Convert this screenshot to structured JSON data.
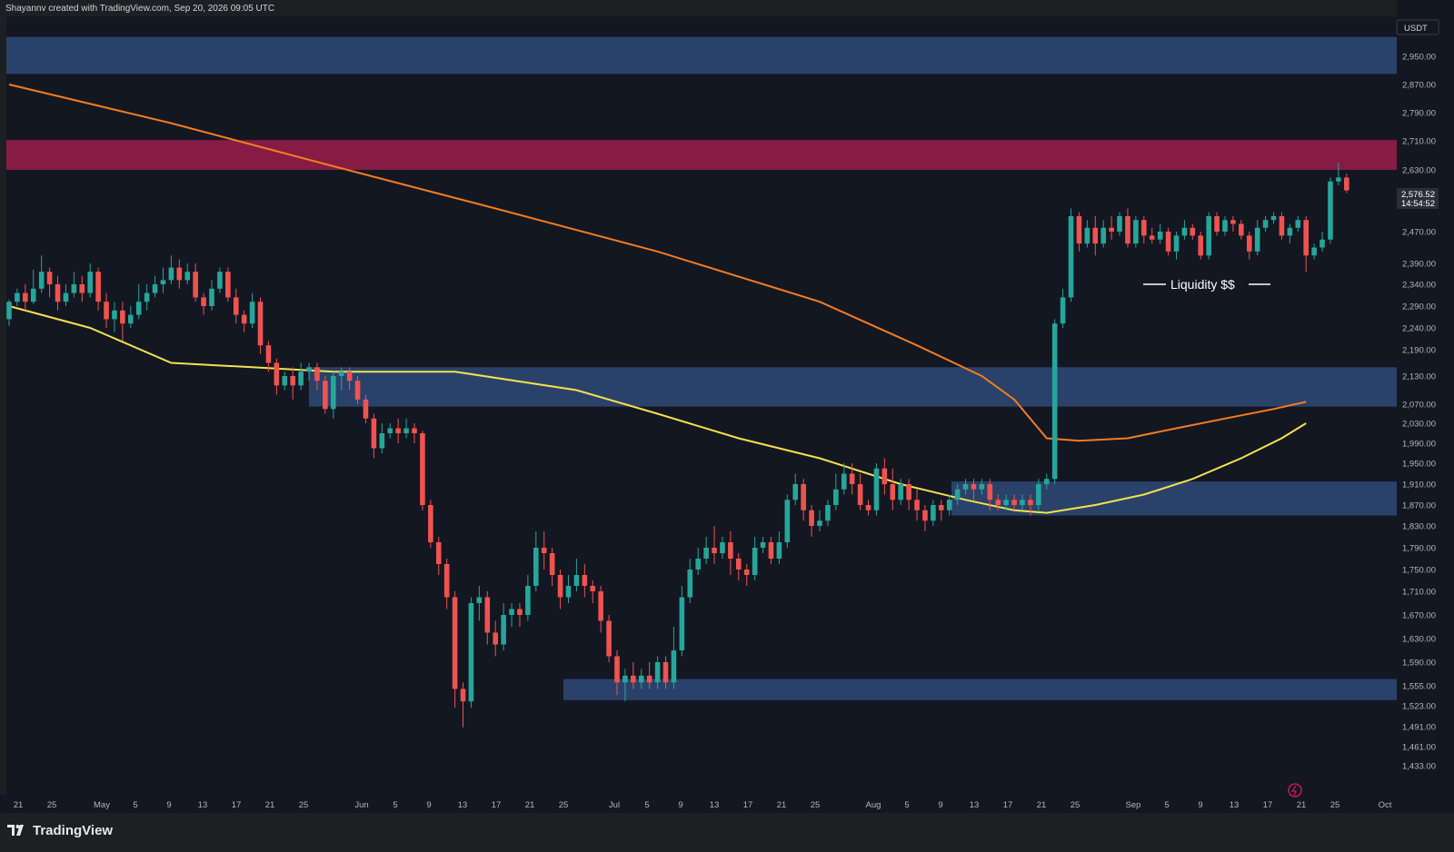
{
  "header": {
    "attribution": "Shayannv created with TradingView.com, Sep 20, 2026 09:05 UTC"
  },
  "footer": {
    "brand": "TradingView"
  },
  "colors": {
    "background": "#131722",
    "up": "#26a69a",
    "down": "#ef5350",
    "zone": "#2f4a77",
    "supply": "#8c1c47",
    "ma_orange": "#f57c1f",
    "ma_yellow": "#f5e14c"
  },
  "chart_data": {
    "type": "candlestick",
    "currency": "USDT",
    "current_price": "2,576.52",
    "countdown": "14:54:52",
    "y_ticks": [
      "2,950.00",
      "2,870.00",
      "2,790.00",
      "2,710.00",
      "2,630.00",
      "2,470.00",
      "2,390.00",
      "2,340.00",
      "2,290.00",
      "2,240.00",
      "2,190.00",
      "2,130.00",
      "2,070.00",
      "2,030.00",
      "1,990.00",
      "1,950.00",
      "1,910.00",
      "1,870.00",
      "1,830.00",
      "1,790.00",
      "1,750.00",
      "1,710.00",
      "1,670.00",
      "1,630.00",
      "1,590.00",
      "1,555.00",
      "1,523.00",
      "1,491.00",
      "1,461.00",
      "1,433.00"
    ],
    "x_ticks": [
      "21",
      "25",
      "May",
      "5",
      "9",
      "13",
      "17",
      "21",
      "25",
      "Jun",
      "5",
      "9",
      "13",
      "17",
      "21",
      "25",
      "Jul",
      "5",
      "9",
      "13",
      "17",
      "21",
      "25",
      "Aug",
      "5",
      "9",
      "13",
      "17",
      "21",
      "25",
      "Sep",
      "5",
      "9",
      "13",
      "17",
      "21",
      "25",
      "Oct"
    ],
    "zones": [
      {
        "type": "demand",
        "from": 2900,
        "to": 3005
      },
      {
        "type": "supply",
        "from": 2630,
        "to": 2712
      },
      {
        "type": "demand",
        "from": 2065,
        "to": 2150
      },
      {
        "type": "demand",
        "from": 1850,
        "to": 1915
      },
      {
        "type": "demand",
        "from": 1532,
        "to": 1565
      }
    ],
    "annotation": "Liquidity $$",
    "candles": [
      [
        2260,
        2300,
        2245,
        2305
      ],
      [
        2300,
        2320,
        2290,
        2330
      ],
      [
        2320,
        2300,
        2280,
        2340
      ],
      [
        2300,
        2330,
        2295,
        2375
      ],
      [
        2330,
        2370,
        2320,
        2410
      ],
      [
        2370,
        2340,
        2310,
        2380
      ],
      [
        2340,
        2300,
        2280,
        2360
      ],
      [
        2300,
        2320,
        2290,
        2340
      ],
      [
        2320,
        2340,
        2310,
        2370
      ],
      [
        2340,
        2320,
        2300,
        2360
      ],
      [
        2320,
        2370,
        2310,
        2390
      ],
      [
        2370,
        2300,
        2280,
        2380
      ],
      [
        2300,
        2260,
        2240,
        2320
      ],
      [
        2260,
        2280,
        2230,
        2300
      ],
      [
        2280,
        2250,
        2210,
        2300
      ],
      [
        2250,
        2270,
        2240,
        2290
      ],
      [
        2270,
        2300,
        2260,
        2340
      ],
      [
        2300,
        2320,
        2280,
        2340
      ],
      [
        2320,
        2340,
        2310,
        2360
      ],
      [
        2340,
        2350,
        2320,
        2380
      ],
      [
        2350,
        2380,
        2340,
        2410
      ],
      [
        2380,
        2350,
        2330,
        2400
      ],
      [
        2350,
        2370,
        2340,
        2390
      ],
      [
        2370,
        2310,
        2300,
        2390
      ],
      [
        2310,
        2290,
        2270,
        2320
      ],
      [
        2290,
        2330,
        2280,
        2350
      ],
      [
        2330,
        2370,
        2320,
        2380
      ],
      [
        2370,
        2310,
        2300,
        2380
      ],
      [
        2310,
        2270,
        2250,
        2330
      ],
      [
        2270,
        2250,
        2230,
        2280
      ],
      [
        2250,
        2300,
        2240,
        2320
      ],
      [
        2300,
        2200,
        2180,
        2310
      ],
      [
        2200,
        2160,
        2140,
        2210
      ],
      [
        2160,
        2110,
        2090,
        2170
      ],
      [
        2110,
        2130,
        2100,
        2140
      ],
      [
        2130,
        2110,
        2080,
        2150
      ],
      [
        2110,
        2140,
        2100,
        2160
      ],
      [
        2140,
        2150,
        2120,
        2160
      ],
      [
        2150,
        2120,
        2100,
        2160
      ],
      [
        2120,
        2060,
        2050,
        2130
      ],
      [
        2060,
        2130,
        2040,
        2140
      ],
      [
        2130,
        2140,
        2100,
        2150
      ],
      [
        2140,
        2120,
        2100,
        2150
      ],
      [
        2120,
        2080,
        2070,
        2130
      ],
      [
        2080,
        2040,
        2030,
        2090
      ],
      [
        2040,
        1980,
        1960,
        2050
      ],
      [
        1980,
        2010,
        1970,
        2030
      ],
      [
        2010,
        2020,
        2000,
        2030
      ],
      [
        2020,
        2010,
        1990,
        2040
      ],
      [
        2010,
        2020,
        2000,
        2040
      ],
      [
        2020,
        2010,
        1990,
        2030
      ],
      [
        2010,
        1870,
        1860,
        2015
      ],
      [
        1870,
        1800,
        1790,
        1880
      ],
      [
        1800,
        1760,
        1740,
        1810
      ],
      [
        1760,
        1700,
        1680,
        1770
      ],
      [
        1700,
        1550,
        1520,
        1710
      ],
      [
        1550,
        1530,
        1490,
        1560
      ],
      [
        1530,
        1690,
        1520,
        1700
      ],
      [
        1690,
        1700,
        1660,
        1720
      ],
      [
        1700,
        1640,
        1620,
        1710
      ],
      [
        1640,
        1620,
        1600,
        1660
      ],
      [
        1620,
        1670,
        1610,
        1690
      ],
      [
        1670,
        1680,
        1650,
        1690
      ],
      [
        1680,
        1670,
        1650,
        1690
      ],
      [
        1670,
        1720,
        1660,
        1740
      ],
      [
        1720,
        1790,
        1710,
        1820
      ],
      [
        1790,
        1780,
        1750,
        1820
      ],
      [
        1780,
        1740,
        1720,
        1790
      ],
      [
        1740,
        1700,
        1680,
        1750
      ],
      [
        1700,
        1720,
        1690,
        1740
      ],
      [
        1720,
        1740,
        1710,
        1770
      ],
      [
        1740,
        1720,
        1700,
        1760
      ],
      [
        1720,
        1710,
        1690,
        1730
      ],
      [
        1710,
        1660,
        1640,
        1720
      ],
      [
        1660,
        1600,
        1590,
        1670
      ],
      [
        1600,
        1560,
        1540,
        1610
      ],
      [
        1560,
        1570,
        1530,
        1580
      ],
      [
        1570,
        1560,
        1550,
        1590
      ],
      [
        1560,
        1570,
        1550,
        1580
      ],
      [
        1570,
        1560,
        1550,
        1590
      ],
      [
        1560,
        1590,
        1550,
        1600
      ],
      [
        1590,
        1560,
        1550,
        1600
      ],
      [
        1560,
        1610,
        1550,
        1650
      ],
      [
        1610,
        1700,
        1600,
        1720
      ],
      [
        1700,
        1750,
        1690,
        1770
      ],
      [
        1750,
        1770,
        1740,
        1790
      ],
      [
        1770,
        1790,
        1760,
        1810
      ],
      [
        1790,
        1780,
        1760,
        1830
      ],
      [
        1780,
        1800,
        1770,
        1810
      ],
      [
        1800,
        1770,
        1740,
        1820
      ],
      [
        1770,
        1750,
        1730,
        1780
      ],
      [
        1750,
        1740,
        1720,
        1760
      ],
      [
        1740,
        1790,
        1730,
        1810
      ],
      [
        1790,
        1800,
        1780,
        1810
      ],
      [
        1800,
        1770,
        1760,
        1810
      ],
      [
        1770,
        1800,
        1760,
        1820
      ],
      [
        1800,
        1880,
        1790,
        1890
      ],
      [
        1880,
        1910,
        1870,
        1930
      ],
      [
        1910,
        1860,
        1840,
        1920
      ],
      [
        1860,
        1830,
        1810,
        1870
      ],
      [
        1830,
        1840,
        1820,
        1860
      ],
      [
        1840,
        1870,
        1830,
        1880
      ],
      [
        1870,
        1900,
        1860,
        1930
      ],
      [
        1900,
        1930,
        1890,
        1950
      ],
      [
        1930,
        1910,
        1890,
        1950
      ],
      [
        1910,
        1870,
        1860,
        1930
      ],
      [
        1870,
        1860,
        1850,
        1880
      ],
      [
        1860,
        1940,
        1850,
        1950
      ],
      [
        1940,
        1910,
        1890,
        1960
      ],
      [
        1910,
        1880,
        1860,
        1940
      ],
      [
        1880,
        1910,
        1870,
        1920
      ],
      [
        1910,
        1880,
        1860,
        1920
      ],
      [
        1880,
        1860,
        1840,
        1900
      ],
      [
        1860,
        1840,
        1820,
        1870
      ],
      [
        1840,
        1870,
        1830,
        1880
      ],
      [
        1870,
        1860,
        1840,
        1880
      ],
      [
        1860,
        1880,
        1850,
        1890
      ],
      [
        1880,
        1900,
        1870,
        1910
      ],
      [
        1900,
        1910,
        1890,
        1920
      ],
      [
        1910,
        1900,
        1880,
        1920
      ],
      [
        1900,
        1910,
        1890,
        1920
      ],
      [
        1910,
        1880,
        1860,
        1920
      ],
      [
        1880,
        1870,
        1860,
        1890
      ],
      [
        1870,
        1880,
        1860,
        1890
      ],
      [
        1880,
        1870,
        1860,
        1890
      ],
      [
        1870,
        1880,
        1860,
        1890
      ],
      [
        1880,
        1870,
        1850,
        1890
      ],
      [
        1870,
        1910,
        1860,
        1920
      ],
      [
        1910,
        1920,
        1900,
        1930
      ],
      [
        1920,
        2250,
        1910,
        2260
      ],
      [
        2250,
        2310,
        2240,
        2330
      ],
      [
        2310,
        2510,
        2300,
        2530
      ],
      [
        2510,
        2440,
        2420,
        2520
      ],
      [
        2440,
        2480,
        2430,
        2500
      ],
      [
        2480,
        2440,
        2410,
        2510
      ],
      [
        2440,
        2480,
        2430,
        2500
      ],
      [
        2480,
        2470,
        2450,
        2510
      ],
      [
        2470,
        2510,
        2460,
        2520
      ],
      [
        2510,
        2440,
        2430,
        2530
      ],
      [
        2440,
        2500,
        2430,
        2510
      ],
      [
        2500,
        2460,
        2440,
        2510
      ],
      [
        2460,
        2450,
        2440,
        2480
      ],
      [
        2450,
        2470,
        2440,
        2490
      ],
      [
        2470,
        2420,
        2410,
        2480
      ],
      [
        2420,
        2460,
        2400,
        2470
      ],
      [
        2460,
        2480,
        2450,
        2500
      ],
      [
        2480,
        2460,
        2450,
        2490
      ],
      [
        2460,
        2410,
        2400,
        2470
      ],
      [
        2410,
        2510,
        2400,
        2520
      ],
      [
        2510,
        2470,
        2460,
        2520
      ],
      [
        2470,
        2500,
        2460,
        2510
      ],
      [
        2500,
        2490,
        2470,
        2510
      ],
      [
        2490,
        2460,
        2450,
        2500
      ],
      [
        2460,
        2420,
        2400,
        2470
      ],
      [
        2420,
        2480,
        2410,
        2500
      ],
      [
        2480,
        2500,
        2470,
        2510
      ],
      [
        2500,
        2510,
        2490,
        2520
      ],
      [
        2510,
        2460,
        2450,
        2520
      ],
      [
        2460,
        2480,
        2440,
        2490
      ],
      [
        2480,
        2500,
        2470,
        2510
      ],
      [
        2500,
        2410,
        2370,
        2510
      ],
      [
        2410,
        2430,
        2400,
        2440
      ],
      [
        2430,
        2450,
        2420,
        2470
      ],
      [
        2450,
        2600,
        2440,
        2610
      ],
      [
        2600,
        2610,
        2590,
        2650
      ],
      [
        2610,
        2577,
        2570,
        2620
      ]
    ],
    "ma_orange": [
      [
        0,
        2870
      ],
      [
        20,
        2760
      ],
      [
        40,
        2640
      ],
      [
        60,
        2530
      ],
      [
        80,
        2420
      ],
      [
        100,
        2300
      ],
      [
        112,
        2200
      ],
      [
        120,
        2130
      ],
      [
        124,
        2080
      ],
      [
        128,
        2000
      ],
      [
        132,
        1995
      ],
      [
        138,
        2000
      ],
      [
        144,
        2020
      ],
      [
        150,
        2040
      ],
      [
        156,
        2060
      ],
      [
        160,
        2075
      ]
    ],
    "ma_yellow": [
      [
        0,
        2290
      ],
      [
        10,
        2240
      ],
      [
        20,
        2160
      ],
      [
        30,
        2150
      ],
      [
        40,
        2140
      ],
      [
        48,
        2140
      ],
      [
        55,
        2140
      ],
      [
        70,
        2100
      ],
      [
        80,
        2050
      ],
      [
        90,
        2000
      ],
      [
        100,
        1960
      ],
      [
        110,
        1910
      ],
      [
        118,
        1880
      ],
      [
        124,
        1860
      ],
      [
        128,
        1855
      ],
      [
        134,
        1870
      ],
      [
        140,
        1890
      ],
      [
        146,
        1920
      ],
      [
        152,
        1960
      ],
      [
        157,
        2000
      ],
      [
        160,
        2030
      ]
    ]
  }
}
